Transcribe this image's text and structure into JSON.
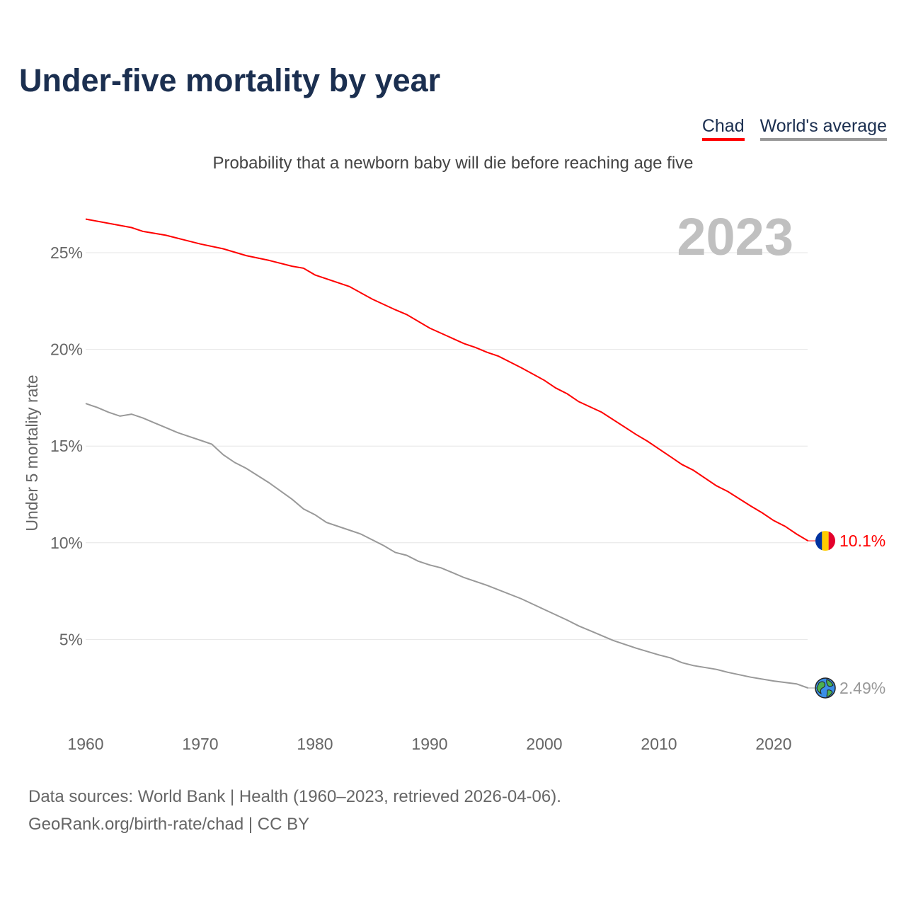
{
  "title": "Under-five mortality by year",
  "subtitle": "Probability that a newborn baby will die before reaching age five",
  "footer": {
    "line1": "Data sources: World Bank | Health (1960–2023, retrieved 2026-04-06).",
    "line2": "GeoRank.org/birth-rate/chad | CC BY"
  },
  "chart_data": {
    "type": "line",
    "title": "Under-five mortality by year",
    "ylabel": "Under 5 mortality rate",
    "xlabel": "",
    "year_label": "2023",
    "xlim": [
      1960,
      2023
    ],
    "ylim": [
      0,
      27.5
    ],
    "xticks": [
      {
        "v": 1960,
        "label": "1960"
      },
      {
        "v": 1970,
        "label": "1970"
      },
      {
        "v": 1980,
        "label": "1980"
      },
      {
        "v": 1990,
        "label": "1990"
      },
      {
        "v": 2000,
        "label": "2000"
      },
      {
        "v": 2010,
        "label": "2010"
      },
      {
        "v": 2020,
        "label": "2020"
      }
    ],
    "yticks": [
      {
        "v": 5,
        "label": "5%"
      },
      {
        "v": 10,
        "label": "10%"
      },
      {
        "v": 15,
        "label": "15%"
      },
      {
        "v": 20,
        "label": "20%"
      },
      {
        "v": 25,
        "label": "25%"
      }
    ],
    "grid": true,
    "legend_position": "top-right",
    "series": [
      {
        "name": "Chad",
        "color": "#ff0000",
        "end_label": "10.1%",
        "icon": "chad-flag",
        "x": [
          1960,
          1964,
          1965,
          1967,
          1968,
          1970,
          1972,
          1974,
          1976,
          1978,
          1979,
          1980,
          1983,
          1985,
          1987,
          1988,
          1990,
          1993,
          1994,
          1995,
          1996,
          1998,
          2000,
          2001,
          2002,
          2003,
          2005,
          2008,
          2009,
          2011,
          2012,
          2013,
          2015,
          2016,
          2018,
          2019,
          2020,
          2021,
          2022,
          2023
        ],
        "values": [
          26.74,
          26.3,
          26.1,
          25.9,
          25.75,
          25.45,
          25.2,
          24.85,
          24.6,
          24.3,
          24.2,
          23.85,
          23.25,
          22.6,
          22.05,
          21.8,
          21.1,
          20.3,
          20.1,
          19.85,
          19.65,
          19.05,
          18.4,
          18.0,
          17.7,
          17.3,
          16.75,
          15.6,
          15.25,
          14.45,
          14.05,
          13.75,
          12.95,
          12.65,
          11.9,
          11.55,
          11.15,
          10.85,
          10.45,
          10.1
        ]
      },
      {
        "name": "World's average",
        "color": "#999999",
        "end_label": "2.49%",
        "icon": "globe",
        "x": [
          1960,
          1961,
          1962,
          1963,
          1964,
          1965,
          1966,
          1967,
          1968,
          1970,
          1971,
          1972,
          1973,
          1974,
          1976,
          1978,
          1979,
          1980,
          1981,
          1983,
          1984,
          1986,
          1987,
          1988,
          1989,
          1990,
          1991,
          1992,
          1993,
          1995,
          1998,
          2000,
          2002,
          2003,
          2004,
          2005,
          2006,
          2008,
          2010,
          2011,
          2012,
          2013,
          2015,
          2016,
          2018,
          2020,
          2022,
          2023
        ],
        "values": [
          17.2,
          17.0,
          16.75,
          16.55,
          16.65,
          16.45,
          16.2,
          15.95,
          15.7,
          15.3,
          15.1,
          14.55,
          14.15,
          13.85,
          13.1,
          12.25,
          11.75,
          11.45,
          11.05,
          10.65,
          10.45,
          9.85,
          9.5,
          9.35,
          9.05,
          8.85,
          8.7,
          8.45,
          8.2,
          7.8,
          7.1,
          6.55,
          6.0,
          5.7,
          5.45,
          5.2,
          4.95,
          4.55,
          4.2,
          4.05,
          3.8,
          3.65,
          3.45,
          3.3,
          3.05,
          2.85,
          2.7,
          2.49
        ]
      }
    ]
  }
}
